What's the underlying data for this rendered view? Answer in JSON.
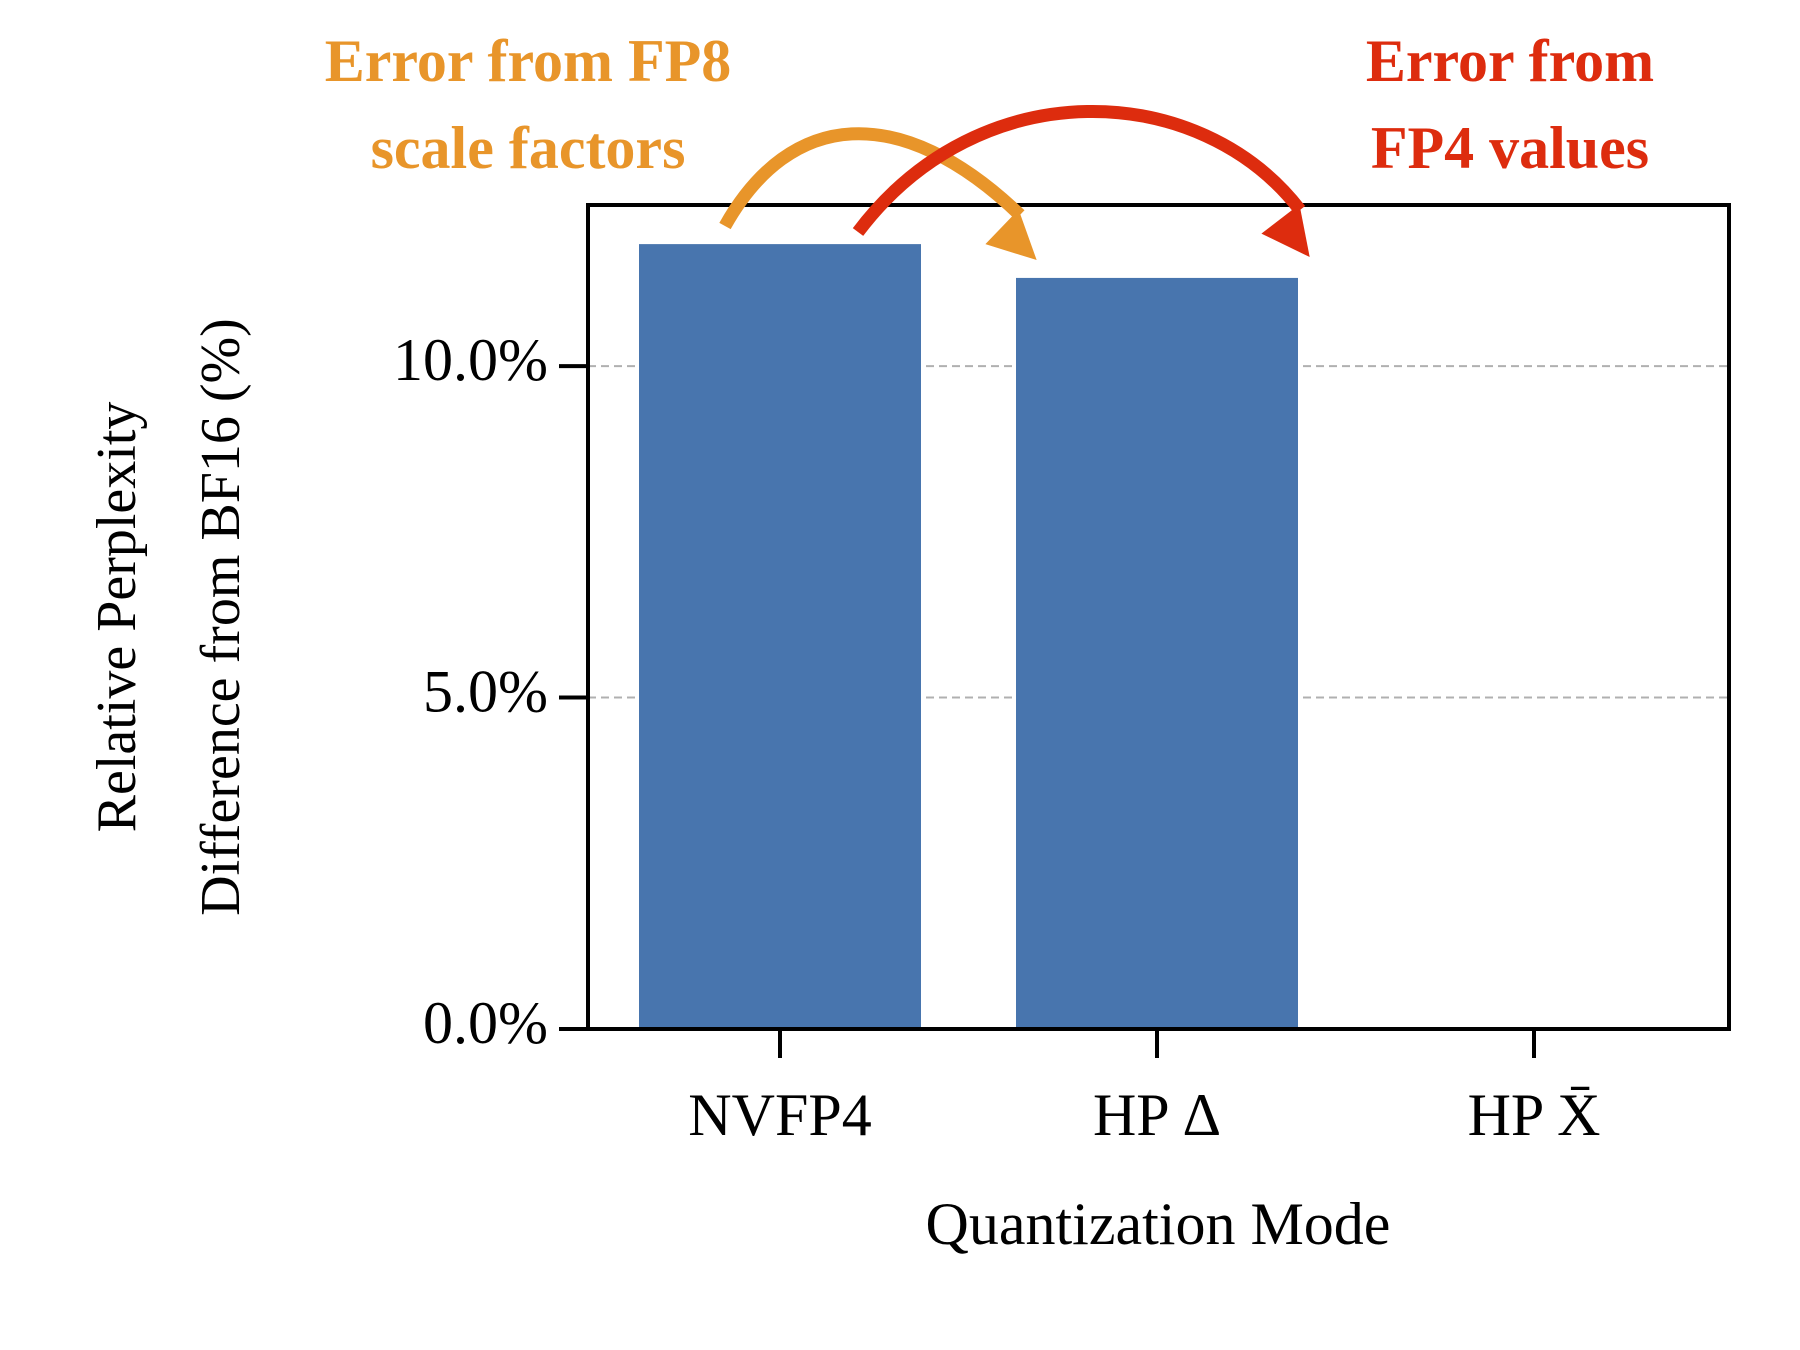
{
  "chart_data": {
    "type": "bar",
    "ylabel": [
      "Relative Perplexity",
      "Difference from BF16 (%)"
    ],
    "xlabel": "Quantization Mode",
    "categories": [
      "NVFP4",
      "HP Δ",
      "HP X̄"
    ],
    "values": [
      11.84,
      11.33,
      0
    ],
    "color": "#4875ae",
    "ylim": [
      0,
      12.43
    ],
    "yticks": [
      {
        "value": 0,
        "label": "0.0%"
      },
      {
        "value": 5,
        "label": "5.0%"
      },
      {
        "value": 10,
        "label": "10.0%"
      }
    ],
    "grid": true,
    "annotations": [
      {
        "text": [
          "Error from FP8",
          "scale factors"
        ],
        "color": "#e8952a"
      },
      {
        "text": [
          "Error from",
          "FP4 values"
        ],
        "color": "#dd2c0e"
      }
    ]
  }
}
